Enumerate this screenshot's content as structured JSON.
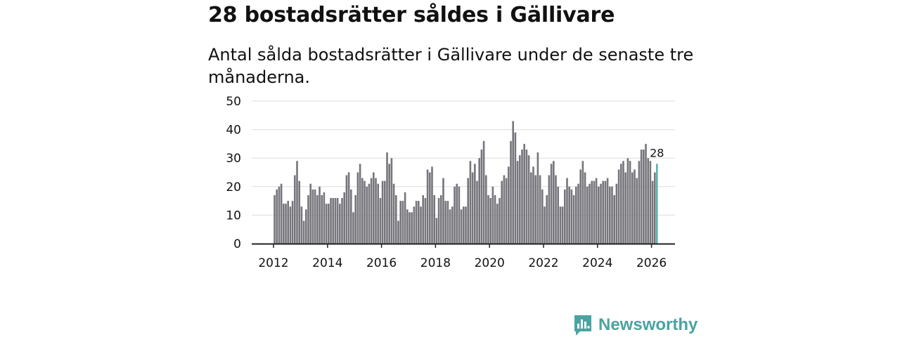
{
  "title": "28 bostadsrätter såldes i Gällivare",
  "subtitle": "Antal sålda bostadsrätter i Gällivare under de senaste tre månaderna.",
  "brand": {
    "name": "Newsworthy",
    "color": "#4aa3a1"
  },
  "colors": {
    "bar": "#76757b",
    "highlight": "#3fa9a5",
    "grid": "#dddddd",
    "axis": "#222222"
  },
  "chart_data": {
    "type": "bar",
    "start": "2012-01",
    "x_ticks": [
      "2012",
      "2014",
      "2016",
      "2018",
      "2020",
      "2022",
      "2024",
      "2026"
    ],
    "y_ticks": [
      0,
      10,
      20,
      30,
      40,
      50
    ],
    "ylim": [
      0,
      50
    ],
    "grid": true,
    "highlight_last": true,
    "last_label": "28",
    "values": [
      17,
      19,
      20,
      21,
      14,
      14,
      15,
      13,
      15,
      24,
      29,
      22,
      13,
      8,
      12,
      17,
      21,
      19,
      19,
      17,
      20,
      17,
      18,
      14,
      14,
      16,
      16,
      16,
      16,
      14,
      16,
      18,
      24,
      25,
      19,
      11,
      17,
      25,
      28,
      23,
      22,
      20,
      21,
      23,
      25,
      23,
      21,
      16,
      22,
      22,
      32,
      28,
      30,
      21,
      17,
      8,
      15,
      15,
      18,
      12,
      11,
      11,
      13,
      15,
      15,
      13,
      17,
      16,
      26,
      25,
      27,
      17,
      9,
      16,
      17,
      23,
      15,
      15,
      12,
      13,
      20,
      21,
      20,
      12,
      13,
      13,
      23,
      29,
      25,
      28,
      22,
      30,
      33,
      36,
      24,
      17,
      16,
      20,
      17,
      14,
      16,
      22,
      24,
      23,
      27,
      36,
      43,
      39,
      29,
      31,
      33,
      35,
      33,
      31,
      25,
      27,
      24,
      32,
      24,
      19,
      13,
      17,
      24,
      28,
      29,
      24,
      20,
      13,
      13,
      19,
      23,
      20,
      19,
      17,
      20,
      21,
      26,
      29,
      25,
      20,
      21,
      22,
      22,
      23,
      20,
      21,
      22,
      22,
      23,
      20,
      20,
      17,
      21,
      26,
      28,
      29,
      25,
      30,
      29,
      25,
      26,
      23,
      29,
      33,
      33,
      35,
      30,
      29,
      22,
      25,
      28
    ]
  }
}
